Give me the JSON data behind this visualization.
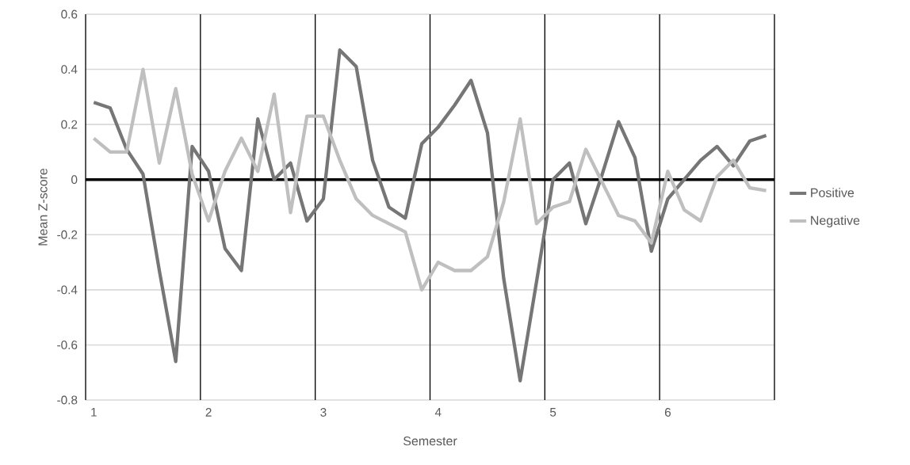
{
  "chart_data": {
    "type": "line",
    "xlabel": "Semester",
    "ylabel": "Mean Z-score",
    "x": [
      1,
      1.143,
      1.286,
      1.429,
      1.571,
      1.714,
      1.857,
      2,
      2.143,
      2.286,
      2.429,
      2.571,
      2.714,
      2.857,
      3,
      3.143,
      3.286,
      3.429,
      3.571,
      3.714,
      3.857,
      4,
      4.143,
      4.286,
      4.429,
      4.571,
      4.714,
      4.857,
      5,
      5.143,
      5.286,
      5.429,
      5.571,
      5.714,
      5.857,
      6,
      6.143,
      6.286,
      6.429,
      6.571,
      6.714,
      6.857
    ],
    "series": [
      {
        "name": "Positive",
        "color": "#767676",
        "values": [
          0.28,
          0.26,
          0.11,
          0.02,
          -0.33,
          -0.66,
          0.12,
          0.03,
          -0.25,
          -0.33,
          0.22,
          0.0,
          0.06,
          -0.15,
          -0.07,
          0.47,
          0.41,
          0.07,
          -0.1,
          -0.14,
          0.13,
          0.19,
          0.27,
          0.36,
          0.17,
          -0.36,
          -0.73,
          -0.37,
          0.0,
          0.06,
          -0.16,
          0.02,
          0.21,
          0.08,
          -0.26,
          -0.07,
          0.0,
          0.07,
          0.12,
          0.05,
          0.14,
          0.16
        ]
      },
      {
        "name": "Negative",
        "color": "#bfbfbf",
        "values": [
          0.15,
          0.1,
          0.1,
          0.4,
          0.06,
          0.33,
          0.02,
          -0.15,
          0.03,
          0.15,
          0.03,
          0.31,
          -0.12,
          0.23,
          0.23,
          0.07,
          -0.07,
          -0.13,
          -0.16,
          -0.19,
          -0.4,
          -0.3,
          -0.33,
          -0.33,
          -0.28,
          -0.08,
          0.22,
          -0.16,
          -0.1,
          -0.08,
          0.11,
          -0.01,
          -0.13,
          -0.15,
          -0.23,
          0.03,
          -0.11,
          -0.15,
          0.01,
          0.07,
          -0.03,
          -0.04
        ]
      }
    ],
    "xlim": [
      0.929,
      6.929
    ],
    "xticks": [
      1,
      2,
      3,
      4,
      5,
      6
    ],
    "ylim": [
      -0.8,
      0.6
    ],
    "yticks": [
      -0.8,
      -0.6,
      -0.4,
      -0.2,
      0,
      0.2,
      0.4,
      0.6
    ],
    "grid": "y",
    "legend": "right",
    "marker": "none",
    "line_style": "solid",
    "ref_lines": [
      {
        "axis": "y",
        "value": 0,
        "color": "#000000"
      },
      {
        "axis": "x",
        "value": 0.929,
        "color": "#000000"
      },
      {
        "axis": "x",
        "value": 1.929,
        "color": "#000000"
      },
      {
        "axis": "x",
        "value": 2.929,
        "color": "#000000"
      },
      {
        "axis": "x",
        "value": 3.929,
        "color": "#000000"
      },
      {
        "axis": "x",
        "value": 4.929,
        "color": "#000000"
      },
      {
        "axis": "x",
        "value": 5.929,
        "color": "#000000"
      },
      {
        "axis": "x",
        "value": 6.929,
        "color": "#000000"
      }
    ]
  }
}
